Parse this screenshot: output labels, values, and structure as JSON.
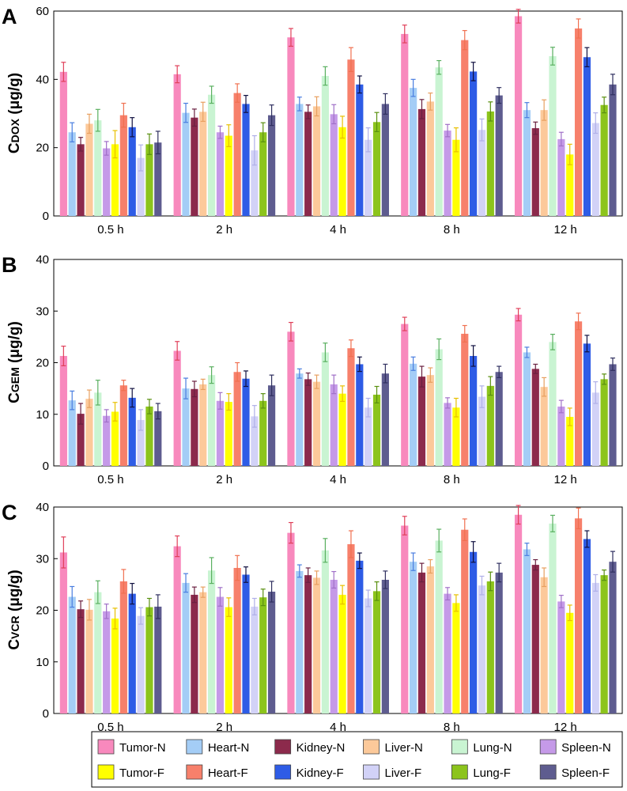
{
  "legend": [
    {
      "name": "Tumor-N",
      "color": "#f889bd"
    },
    {
      "name": "Heart-N",
      "color": "#a4cdf6"
    },
    {
      "name": "Kidney-N",
      "color": "#8c2a4c"
    },
    {
      "name": "Liver-N",
      "color": "#fcc99a"
    },
    {
      "name": "Lung-N",
      "color": "#c9f4d2"
    },
    {
      "name": "Spleen-N",
      "color": "#c59ae8"
    },
    {
      "name": "Tumor-F",
      "color": "#ffff00"
    },
    {
      "name": "Heart-F",
      "color": "#f7806b"
    },
    {
      "name": "Kidney-F",
      "color": "#2e5ce6"
    },
    {
      "name": "Liver-F",
      "color": "#d2d2f7"
    },
    {
      "name": "Lung-F",
      "color": "#8cc41c"
    },
    {
      "name": "Spleen-F",
      "color": "#5e5c8f"
    }
  ],
  "error_colors": [
    "#e0405a",
    "#4a7ee0",
    "#6a2040",
    "#e8a060",
    "#5ab060",
    "#a070c8",
    "#e8c000",
    "#f07050",
    "#101040",
    "#b0b0e8",
    "#5a9010",
    "#303060"
  ],
  "chart_data": [
    {
      "type": "bar",
      "panel": "A",
      "ylabel_main": "C",
      "ylabel_sub": "DOX",
      "ylabel_unit": " (μg/g)",
      "categories": [
        "0.5 h",
        "2 h",
        "4 h",
        "8 h",
        "12 h"
      ],
      "ylim": [
        0,
        60
      ],
      "yticks": [
        0,
        20,
        40,
        60
      ],
      "series": [
        {
          "name": "Tumor-N",
          "values": [
            42.2,
            41.5,
            52.3,
            53.3,
            58.5
          ],
          "errors": [
            2.8,
            2.5,
            2.6,
            2.6,
            2.0
          ]
        },
        {
          "name": "Heart-N",
          "values": [
            24.5,
            30.2,
            32.8,
            37.5,
            31.0
          ],
          "errors": [
            2.8,
            2.8,
            2.0,
            2.5,
            2.2
          ]
        },
        {
          "name": "Kidney-N",
          "values": [
            21.0,
            28.8,
            30.5,
            31.3,
            25.7
          ],
          "errors": [
            2.0,
            2.5,
            2.0,
            2.8,
            1.8
          ]
        },
        {
          "name": "Liver-N",
          "values": [
            27.0,
            30.5,
            32.1,
            33.5,
            31.0
          ],
          "errors": [
            2.8,
            2.8,
            2.8,
            2.5,
            3.0
          ]
        },
        {
          "name": "Lung-N",
          "values": [
            28.0,
            35.5,
            41.0,
            43.5,
            46.8
          ],
          "errors": [
            3.2,
            2.5,
            2.7,
            2.0,
            2.6
          ]
        },
        {
          "name": "Spleen-N",
          "values": [
            19.8,
            24.5,
            29.8,
            25.0,
            22.5
          ],
          "errors": [
            2.0,
            1.8,
            2.8,
            1.8,
            2.0
          ]
        },
        {
          "name": "Tumor-F",
          "values": [
            21.0,
            23.5,
            26.0,
            22.3,
            18.0
          ],
          "errors": [
            4.0,
            3.2,
            3.2,
            3.5,
            3.0
          ]
        },
        {
          "name": "Heart-F",
          "values": [
            29.5,
            36.0,
            45.8,
            51.5,
            54.9
          ],
          "errors": [
            3.5,
            2.7,
            3.5,
            2.8,
            2.8
          ]
        },
        {
          "name": "Kidney-F",
          "values": [
            26.0,
            32.8,
            38.5,
            42.3,
            46.5
          ],
          "errors": [
            2.8,
            2.5,
            2.5,
            2.7,
            2.8
          ]
        },
        {
          "name": "Liver-F",
          "values": [
            17.0,
            19.2,
            22.3,
            25.2,
            27.2
          ],
          "errors": [
            3.8,
            4.3,
            3.5,
            3.2,
            3.0
          ]
        },
        {
          "name": "Lung-F",
          "values": [
            21.0,
            24.5,
            27.5,
            30.6,
            32.5
          ],
          "errors": [
            3.0,
            2.8,
            2.8,
            2.8,
            2.3
          ]
        },
        {
          "name": "Spleen-F",
          "values": [
            21.5,
            29.5,
            32.8,
            35.3,
            38.5
          ],
          "errors": [
            3.3,
            3.0,
            3.0,
            2.3,
            3.0
          ]
        }
      ]
    },
    {
      "type": "bar",
      "panel": "B",
      "ylabel_main": "C",
      "ylabel_sub": "GEM",
      "ylabel_unit": " (μg/g)",
      "categories": [
        "0.5 h",
        "2 h",
        "4 h",
        "8 h",
        "12 h"
      ],
      "ylim": [
        0,
        40
      ],
      "yticks": [
        0,
        10,
        20,
        30,
        40
      ],
      "series": [
        {
          "name": "Tumor-N",
          "values": [
            21.3,
            22.3,
            26.0,
            27.5,
            29.3
          ],
          "errors": [
            1.9,
            1.8,
            1.8,
            1.3,
            1.2
          ]
        },
        {
          "name": "Heart-N",
          "values": [
            12.7,
            15.0,
            17.9,
            19.8,
            22.0
          ],
          "errors": [
            1.8,
            2.0,
            0.9,
            1.3,
            1.0
          ]
        },
        {
          "name": "Kidney-N",
          "values": [
            10.1,
            14.9,
            16.8,
            17.3,
            18.8
          ],
          "errors": [
            2.0,
            1.5,
            1.2,
            2.0,
            0.9
          ]
        },
        {
          "name": "Liver-N",
          "values": [
            13.0,
            15.8,
            16.3,
            17.6,
            15.3
          ],
          "errors": [
            1.7,
            1.0,
            1.3,
            1.4,
            1.8
          ]
        },
        {
          "name": "Lung-N",
          "values": [
            14.2,
            17.6,
            22.0,
            22.6,
            24.0
          ],
          "errors": [
            2.4,
            1.6,
            1.8,
            2.0,
            1.5
          ]
        },
        {
          "name": "Spleen-N",
          "values": [
            9.7,
            12.6,
            15.8,
            12.2,
            11.5
          ],
          "errors": [
            1.2,
            1.6,
            1.8,
            1.0,
            1.2
          ]
        },
        {
          "name": "Tumor-F",
          "values": [
            10.5,
            12.4,
            14.0,
            11.3,
            9.5
          ],
          "errors": [
            1.8,
            1.6,
            1.5,
            1.8,
            1.7
          ]
        },
        {
          "name": "Heart-F",
          "values": [
            15.6,
            18.2,
            22.8,
            25.6,
            28.0
          ],
          "errors": [
            1.0,
            1.8,
            1.6,
            1.6,
            1.6
          ]
        },
        {
          "name": "Kidney-F",
          "values": [
            13.2,
            16.9,
            19.7,
            21.3,
            23.7
          ],
          "errors": [
            1.8,
            1.5,
            1.4,
            2.0,
            1.6
          ]
        },
        {
          "name": "Liver-F",
          "values": [
            8.9,
            9.6,
            11.3,
            13.4,
            14.2
          ],
          "errors": [
            2.0,
            2.1,
            1.8,
            2.1,
            2.1
          ]
        },
        {
          "name": "Lung-F",
          "values": [
            11.5,
            12.6,
            13.8,
            15.5,
            16.8
          ],
          "errors": [
            1.4,
            1.4,
            1.6,
            1.8,
            1.0
          ]
        },
        {
          "name": "Spleen-F",
          "values": [
            10.6,
            15.6,
            17.9,
            18.2,
            19.7
          ],
          "errors": [
            1.5,
            2.0,
            1.8,
            1.1,
            1.2
          ]
        }
      ]
    },
    {
      "type": "bar",
      "panel": "C",
      "ylabel_main": "C",
      "ylabel_sub": "VCR",
      "ylabel_unit": " (μg/g)",
      "categories": [
        "0.5 h",
        "2 h",
        "4 h",
        "8 h",
        "12 h"
      ],
      "ylim": [
        0,
        40
      ],
      "yticks": [
        0,
        10,
        20,
        30,
        40
      ],
      "series": [
        {
          "name": "Tumor-N",
          "values": [
            31.2,
            32.4,
            35.0,
            36.4,
            38.5
          ],
          "errors": [
            3.0,
            2.0,
            2.0,
            1.8,
            1.8
          ]
        },
        {
          "name": "Heart-N",
          "values": [
            22.6,
            25.3,
            27.6,
            29.4,
            31.8
          ],
          "errors": [
            2.0,
            1.8,
            1.2,
            1.7,
            1.2
          ]
        },
        {
          "name": "Kidney-N",
          "values": [
            20.2,
            23.0,
            26.8,
            27.3,
            28.8
          ],
          "errors": [
            1.6,
            1.5,
            1.4,
            1.8,
            1.0
          ]
        },
        {
          "name": "Liver-N",
          "values": [
            20.1,
            23.5,
            26.3,
            28.5,
            26.4
          ],
          "errors": [
            2.0,
            1.0,
            1.3,
            1.3,
            1.8
          ]
        },
        {
          "name": "Lung-N",
          "values": [
            23.5,
            27.7,
            31.6,
            33.5,
            36.8
          ],
          "errors": [
            2.2,
            2.5,
            2.3,
            2.2,
            1.6
          ]
        },
        {
          "name": "Spleen-N",
          "values": [
            19.8,
            22.6,
            25.9,
            23.2,
            21.7
          ],
          "errors": [
            1.4,
            1.8,
            1.6,
            1.2,
            1.2
          ]
        },
        {
          "name": "Tumor-F",
          "values": [
            18.4,
            20.6,
            23.0,
            21.4,
            19.5
          ],
          "errors": [
            2.0,
            1.8,
            1.8,
            1.6,
            1.5
          ]
        },
        {
          "name": "Heart-F",
          "values": [
            25.6,
            28.2,
            32.8,
            35.6,
            37.8
          ],
          "errors": [
            2.3,
            2.4,
            2.6,
            2.1,
            2.0
          ]
        },
        {
          "name": "Kidney-F",
          "values": [
            23.2,
            26.9,
            29.6,
            31.3,
            33.8
          ],
          "errors": [
            2.0,
            1.5,
            1.5,
            2.0,
            1.6
          ]
        },
        {
          "name": "Liver-F",
          "values": [
            18.9,
            20.7,
            22.3,
            24.8,
            25.3
          ],
          "errors": [
            1.6,
            1.6,
            1.6,
            1.8,
            1.6
          ]
        },
        {
          "name": "Lung-F",
          "values": [
            20.6,
            22.5,
            23.7,
            25.6,
            26.8
          ],
          "errors": [
            1.7,
            1.6,
            1.8,
            1.8,
            1.0
          ]
        },
        {
          "name": "Spleen-F",
          "values": [
            20.7,
            23.6,
            25.9,
            27.3,
            29.4
          ],
          "errors": [
            2.3,
            2.0,
            1.7,
            1.8,
            2.0
          ]
        }
      ]
    }
  ]
}
